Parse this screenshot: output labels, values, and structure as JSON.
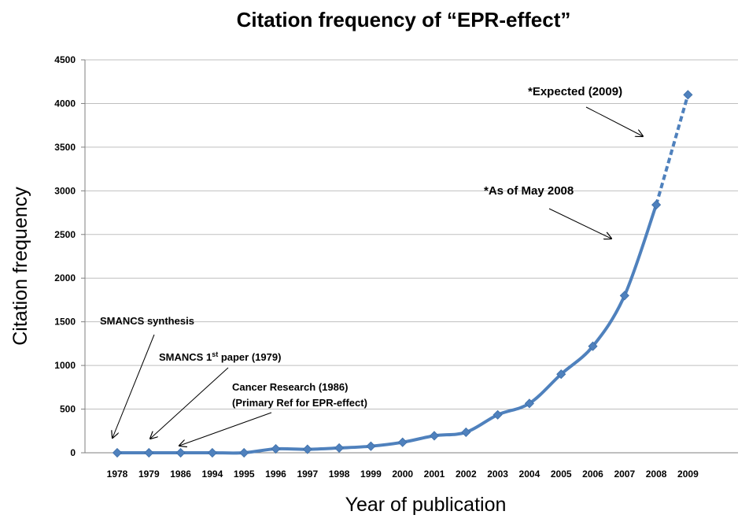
{
  "chart_data": {
    "type": "line",
    "title": "Citation frequency of “EPR-effect”",
    "xlabel": "Year of publication",
    "ylabel": "Citation frequency",
    "ylim": [
      0,
      4500
    ],
    "yticks": [
      "0",
      "500",
      "1000",
      "1500",
      "2000",
      "2500",
      "3000",
      "3500",
      "4000",
      "4500"
    ],
    "categories": [
      "1978",
      "1979",
      "1986",
      "1994",
      "1995",
      "1996",
      "1997",
      "1998",
      "1999",
      "2000",
      "2001",
      "2002",
      "2003",
      "2004",
      "2005",
      "2006",
      "2007",
      "2008",
      "2009"
    ],
    "values": [
      0,
      0,
      0,
      0,
      0,
      45,
      40,
      55,
      75,
      120,
      195,
      235,
      435,
      565,
      900,
      1220,
      1800,
      2840,
      4100
    ],
    "dashed_from_index": 17,
    "grid": true,
    "line_color": "#4f81bd",
    "annotations": {
      "expected": "*Expected (2009)",
      "as_of": "*As of May 2008",
      "smancs_synthesis": "SMANCS synthesis",
      "smancs_paper_pre": "SMANCS 1",
      "smancs_paper_sup": "st",
      "smancs_paper_post": " paper (1979)",
      "cancer_research_line1": "Cancer Research (1986)",
      "cancer_research_line2": "(Primary Ref for EPR-effect)"
    }
  }
}
